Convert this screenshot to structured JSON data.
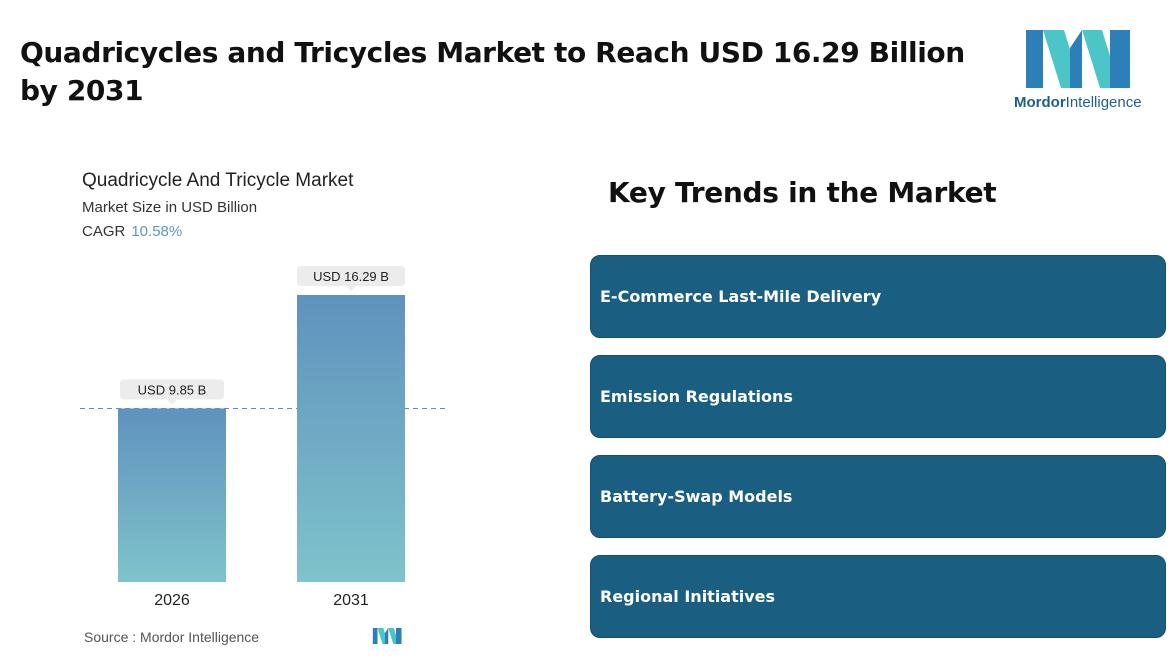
{
  "headline": "Quadricycles and Tricycles Market to Reach USD 16.29 Billion by 2031",
  "brand": {
    "name_bold": "Mordor",
    "name_regular": "Intelligence",
    "colors": {
      "primary": "#2c7fb8",
      "accent": "#4cc5c9"
    }
  },
  "chart_data": {
    "type": "bar",
    "title": "Quadricycle And Tricycle Market",
    "subtitle": "Market Size in USD Billion",
    "cagr_label": "CAGR",
    "cagr_value": "10.58%",
    "categories": [
      "2026",
      "2031"
    ],
    "values": [
      9.85,
      16.29
    ],
    "data_labels": [
      "USD 9.85 B",
      "USD 16.29 B"
    ],
    "ylim": [
      0,
      18
    ],
    "reference_line": 9.85,
    "grid": false,
    "colors": {
      "bar_top": "#5f92be",
      "bar_bottom": "#7fc3cb",
      "label_bg": "#ececec"
    }
  },
  "source": "Source :  Mordor Intelligence",
  "trends": {
    "title": "Key Trends in the Market",
    "items": [
      "E-Commerce Last-Mile Delivery",
      "Emission Regulations",
      "Battery-Swap Models",
      "Regional Initiatives"
    ],
    "color": "#1a5f82"
  }
}
